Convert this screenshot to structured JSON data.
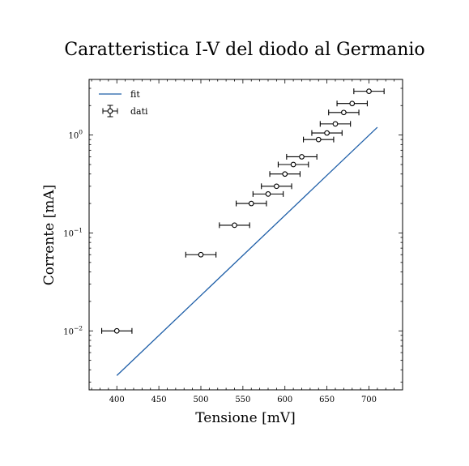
{
  "chart_data": {
    "type": "scatter",
    "title": "Caratteristica I-V del diodo al Germanio",
    "xlabel": "Tensione [mV]",
    "ylabel": "Corrente [mA]",
    "xlim": [
      367,
      740
    ],
    "ylim": [
      0.0025,
      3.7
    ],
    "y_scale": "log",
    "x_ticks": [
      400,
      450,
      500,
      550,
      600,
      650,
      700
    ],
    "x_tick_labels": [
      "400",
      "450",
      "500",
      "550",
      "600",
      "650",
      "700"
    ],
    "y_ticks": [
      0.01,
      0.1,
      1
    ],
    "y_tick_labels": [
      {
        "base": "10",
        "exp": "−2"
      },
      {
        "base": "10",
        "exp": "−1"
      },
      {
        "base": "10",
        "exp": "0"
      }
    ],
    "legend": {
      "position": "top-left",
      "entries": [
        "fit",
        "dati"
      ]
    },
    "series": [
      {
        "name": "dati",
        "kind": "errorbar",
        "x_error": 18,
        "points": [
          {
            "x": 400,
            "y": 0.01
          },
          {
            "x": 500,
            "y": 0.06
          },
          {
            "x": 540,
            "y": 0.12
          },
          {
            "x": 560,
            "y": 0.2
          },
          {
            "x": 580,
            "y": 0.25
          },
          {
            "x": 590,
            "y": 0.3
          },
          {
            "x": 600,
            "y": 0.4
          },
          {
            "x": 610,
            "y": 0.5
          },
          {
            "x": 620,
            "y": 0.6
          },
          {
            "x": 640,
            "y": 0.9
          },
          {
            "x": 650,
            "y": 1.05
          },
          {
            "x": 660,
            "y": 1.3
          },
          {
            "x": 670,
            "y": 1.7
          },
          {
            "x": 680,
            "y": 2.1
          },
          {
            "x": 700,
            "y": 2.8
          }
        ]
      },
      {
        "name": "fit",
        "kind": "line",
        "points": [
          {
            "x": 400,
            "y": 0.0035
          },
          {
            "x": 710,
            "y": 1.2
          }
        ]
      }
    ],
    "colors": {
      "fit": "#1f5fa8",
      "data": "#000000",
      "axes": "#000000"
    }
  }
}
